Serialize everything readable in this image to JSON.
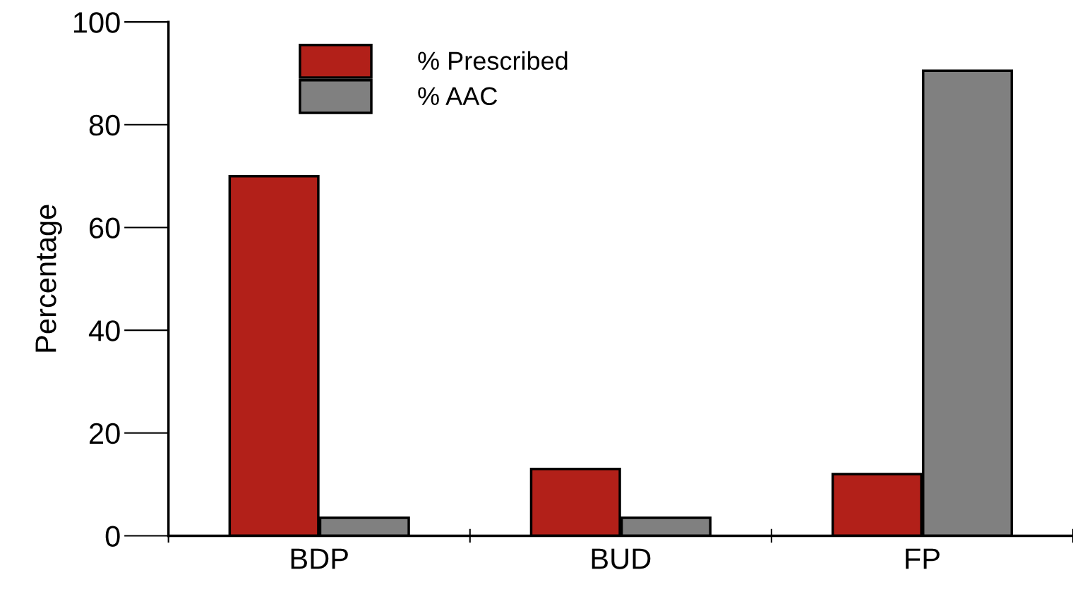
{
  "chart_data": {
    "type": "bar",
    "ylabel": "Percentage",
    "categories": [
      "BDP",
      "BUD",
      "FP"
    ],
    "series": [
      {
        "name": "% Prescribed",
        "color": "#b22019",
        "values": [
          70,
          13,
          12
        ]
      },
      {
        "name": "% AAC",
        "color": "#808080",
        "values": [
          3.5,
          3.5,
          90.5
        ]
      }
    ],
    "ylim": [
      0,
      100
    ],
    "yticks": [
      0,
      20,
      40,
      60,
      80,
      100
    ],
    "grid": false,
    "legend": "top left"
  }
}
